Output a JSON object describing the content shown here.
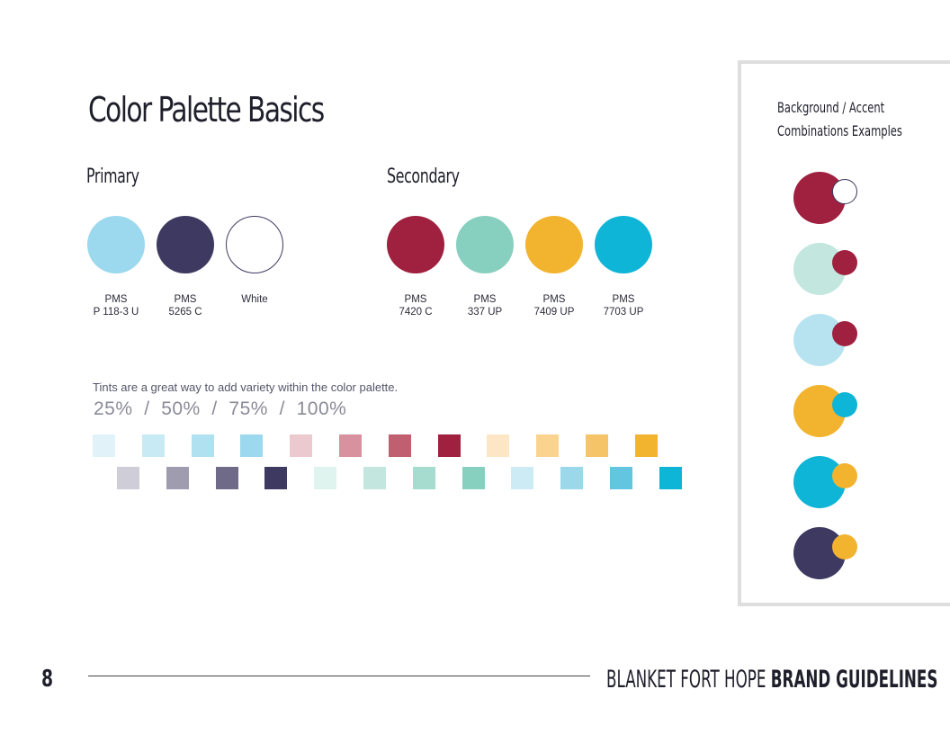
{
  "title": "Color Palette Basics",
  "primary": {
    "heading": "Primary",
    "swatches": [
      {
        "line1": "PMS",
        "line2": "P 118-3 U",
        "color": "#9cd8ee"
      },
      {
        "line1": "PMS",
        "line2": "5265 C",
        "color": "#3e3960"
      },
      {
        "line1": "White",
        "line2": "",
        "color": "#ffffff"
      }
    ]
  },
  "secondary": {
    "heading": "Secondary",
    "swatches": [
      {
        "line1": "PMS",
        "line2": "7420 C",
        "color": "#a0203f"
      },
      {
        "line1": "PMS",
        "line2": "337 UP",
        "color": "#87d0c0"
      },
      {
        "line1": "PMS",
        "line2": "7409 UP",
        "color": "#f2b42f"
      },
      {
        "line1": "PMS",
        "line2": "7703 UP",
        "color": "#0fb5d6"
      }
    ]
  },
  "tints": {
    "note": "Tints are a great way to add variety within the color palette.",
    "percentages": "25%  /  50%  /  75%  /  100%",
    "row1": [
      "#e1f3f9",
      "#c8eaf5",
      "#b0e1f1",
      "#9cd8ee",
      "#ecc9cf",
      "#d8919f",
      "#c05f70",
      "#a0203f",
      "#fde6c6",
      "#fad38e",
      "#f6c468",
      "#f2b42f"
    ],
    "row2": [
      "#cfcdd8",
      "#9f9cb0",
      "#6f6a88",
      "#3e3960",
      "#dff3ef",
      "#c3e7df",
      "#a5dccf",
      "#87d0c0",
      "#cdebf4",
      "#9bd8ea",
      "#63c6e0",
      "#0fb5d6"
    ]
  },
  "panel": {
    "title_line1": "Background / Accent",
    "title_line2": "Combinations Examples",
    "combos": [
      {
        "bg": "#a0203f",
        "accent": "#ffffff"
      },
      {
        "bg": "#c3e7df",
        "accent": "#a0203f"
      },
      {
        "bg": "#b7e3f1",
        "accent": "#a0203f"
      },
      {
        "bg": "#f2b42f",
        "accent": "#0fb5d6"
      },
      {
        "bg": "#0fb5d6",
        "accent": "#f2b42f"
      },
      {
        "bg": "#3e3960",
        "accent": "#f2b42f"
      }
    ]
  },
  "footer": {
    "page_number": "8",
    "brand_light": "BLANKET FORT HOPE ",
    "brand_bold": "BRAND GUIDELINES"
  }
}
